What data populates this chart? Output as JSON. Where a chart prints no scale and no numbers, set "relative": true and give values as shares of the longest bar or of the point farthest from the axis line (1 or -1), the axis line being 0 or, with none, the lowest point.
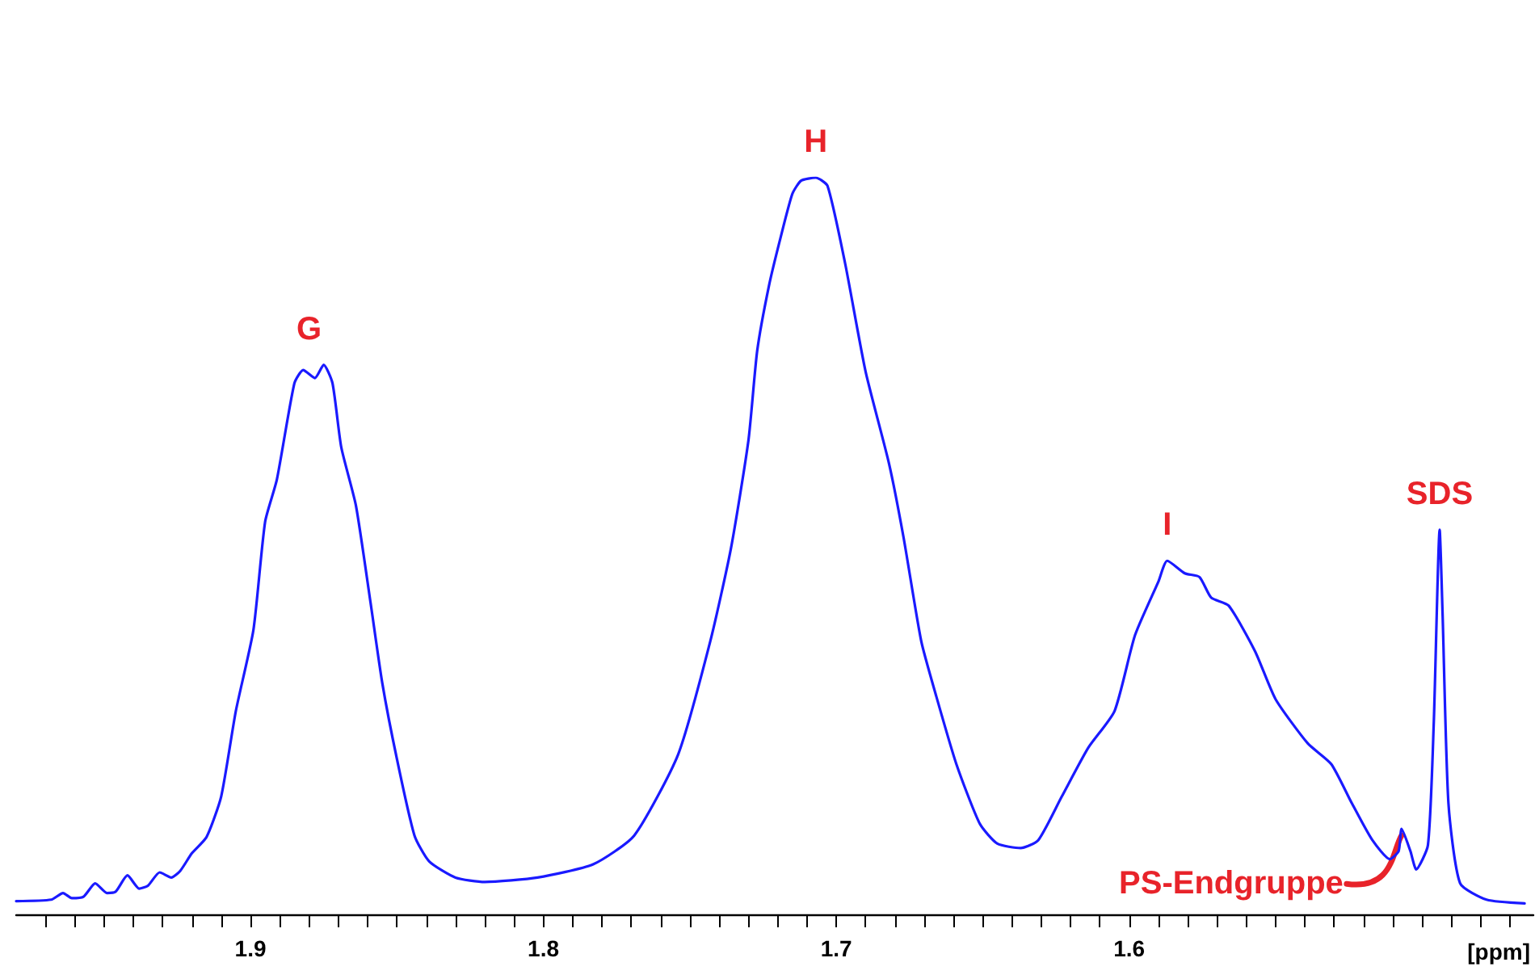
{
  "chart_data": {
    "type": "line",
    "relative": true,
    "xlabel": "[ppm]",
    "xlim": [
      1.98,
      1.462
    ],
    "xticks": [
      {
        "value": 1.97,
        "label": null
      },
      {
        "value": 1.96,
        "label": null
      },
      {
        "value": 1.95,
        "label": null
      },
      {
        "value": 1.94,
        "label": null
      },
      {
        "value": 1.93,
        "label": null
      },
      {
        "value": 1.92,
        "label": null
      },
      {
        "value": 1.91,
        "label": null
      },
      1.9,
      {
        "value": 1.89,
        "label": null
      },
      {
        "value": 1.88,
        "label": null
      },
      {
        "value": 1.87,
        "label": null
      },
      {
        "value": 1.86,
        "label": null
      },
      {
        "value": 1.85,
        "label": null
      },
      {
        "value": 1.84,
        "label": null
      },
      {
        "value": 1.83,
        "label": null
      },
      {
        "value": 1.82,
        "label": null
      },
      {
        "value": 1.81,
        "label": null
      },
      1.8,
      {
        "value": 1.79,
        "label": null
      },
      {
        "value": 1.78,
        "label": null
      },
      {
        "value": 1.77,
        "label": null
      },
      {
        "value": 1.76,
        "label": null
      },
      {
        "value": 1.75,
        "label": null
      },
      {
        "value": 1.74,
        "label": null
      },
      {
        "value": 1.73,
        "label": null
      },
      {
        "value": 1.72,
        "label": null
      },
      {
        "value": 1.71,
        "label": null
      },
      1.7,
      {
        "value": 1.69,
        "label": null
      },
      {
        "value": 1.68,
        "label": null
      },
      {
        "value": 1.67,
        "label": null
      },
      {
        "value": 1.66,
        "label": null
      },
      {
        "value": 1.65,
        "label": null
      },
      {
        "value": 1.64,
        "label": null
      },
      {
        "value": 1.63,
        "label": null
      },
      {
        "value": 1.62,
        "label": null
      },
      {
        "value": 1.61,
        "label": null
      },
      1.6,
      {
        "value": 1.59,
        "label": null
      },
      {
        "value": 1.58,
        "label": null
      },
      {
        "value": 1.57,
        "label": null
      },
      {
        "value": 1.56,
        "label": null
      },
      {
        "value": 1.55,
        "label": null
      },
      {
        "value": 1.54,
        "label": null
      },
      {
        "value": 1.53,
        "label": null
      },
      {
        "value": 1.52,
        "label": null
      },
      {
        "value": 1.51,
        "label": null
      },
      {
        "value": 1.5,
        "label": null
      },
      {
        "value": 1.49,
        "label": null
      },
      {
        "value": 1.48,
        "label": null
      },
      {
        "value": 1.47,
        "label": null
      }
    ],
    "grid": false,
    "marker": "none",
    "line_style": "solid",
    "series": [
      {
        "color": "#1a1aff",
        "x": [
          1.98,
          1.968,
          1.964,
          1.961,
          1.957,
          1.953,
          1.949,
          1.946,
          1.942,
          1.938,
          1.935,
          1.931,
          1.927,
          1.924,
          1.92,
          1.915,
          1.91,
          1.905,
          1.899,
          1.895,
          1.891,
          1.885,
          1.882,
          1.878,
          1.875,
          1.872,
          1.869,
          1.864,
          1.859,
          1.855,
          1.85,
          1.844,
          1.839,
          1.83,
          1.82,
          1.802,
          1.783,
          1.769,
          1.754,
          1.743,
          1.736,
          1.73,
          1.727,
          1.723,
          1.719,
          1.715,
          1.712,
          1.707,
          1.703,
          1.697,
          1.69,
          1.682,
          1.677,
          1.671,
          1.666,
          1.659,
          1.651,
          1.645,
          1.637,
          1.631,
          1.623,
          1.614,
          1.605,
          1.598,
          1.59,
          1.587,
          1.581,
          1.576,
          1.572,
          1.566,
          1.557,
          1.55,
          1.539,
          1.531,
          1.524,
          1.517,
          1.511,
          1.508,
          1.507,
          1.504,
          1.502,
          1.498,
          1.496,
          1.494,
          1.493,
          1.491,
          1.487,
          1.478,
          1.465
        ],
        "values": [
          0.018,
          0.02,
          0.029,
          0.022,
          0.024,
          0.042,
          0.029,
          0.031,
          0.053,
          0.035,
          0.039,
          0.057,
          0.05,
          0.059,
          0.083,
          0.105,
          0.16,
          0.276,
          0.386,
          0.533,
          0.59,
          0.721,
          0.739,
          0.728,
          0.746,
          0.721,
          0.634,
          0.555,
          0.423,
          0.314,
          0.211,
          0.107,
          0.072,
          0.05,
          0.044,
          0.05,
          0.068,
          0.107,
          0.217,
          0.371,
          0.496,
          0.643,
          0.765,
          0.853,
          0.919,
          0.978,
          0.996,
          1.0,
          0.989,
          0.884,
          0.737,
          0.612,
          0.511,
          0.371,
          0.298,
          0.204,
          0.123,
          0.096,
          0.09,
          0.101,
          0.16,
          0.226,
          0.276,
          0.379,
          0.452,
          0.48,
          0.463,
          0.458,
          0.43,
          0.419,
          0.357,
          0.292,
          0.232,
          0.204,
          0.151,
          0.101,
          0.075,
          0.086,
          0.116,
          0.086,
          0.061,
          0.094,
          0.261,
          0.522,
          0.408,
          0.151,
          0.042,
          0.02,
          0.015
        ]
      }
    ],
    "annotations": [
      {
        "text": "G",
        "x": 1.88,
        "y": 0.746
      },
      {
        "text": "H",
        "x": 1.707,
        "y": 1.0
      },
      {
        "text": "I",
        "x": 1.587,
        "y": 0.48
      },
      {
        "text": "SDS",
        "x": 1.494,
        "y": 0.522
      },
      {
        "text": "PS-Endgruppe",
        "x": 1.507,
        "y": 0.116
      }
    ]
  }
}
